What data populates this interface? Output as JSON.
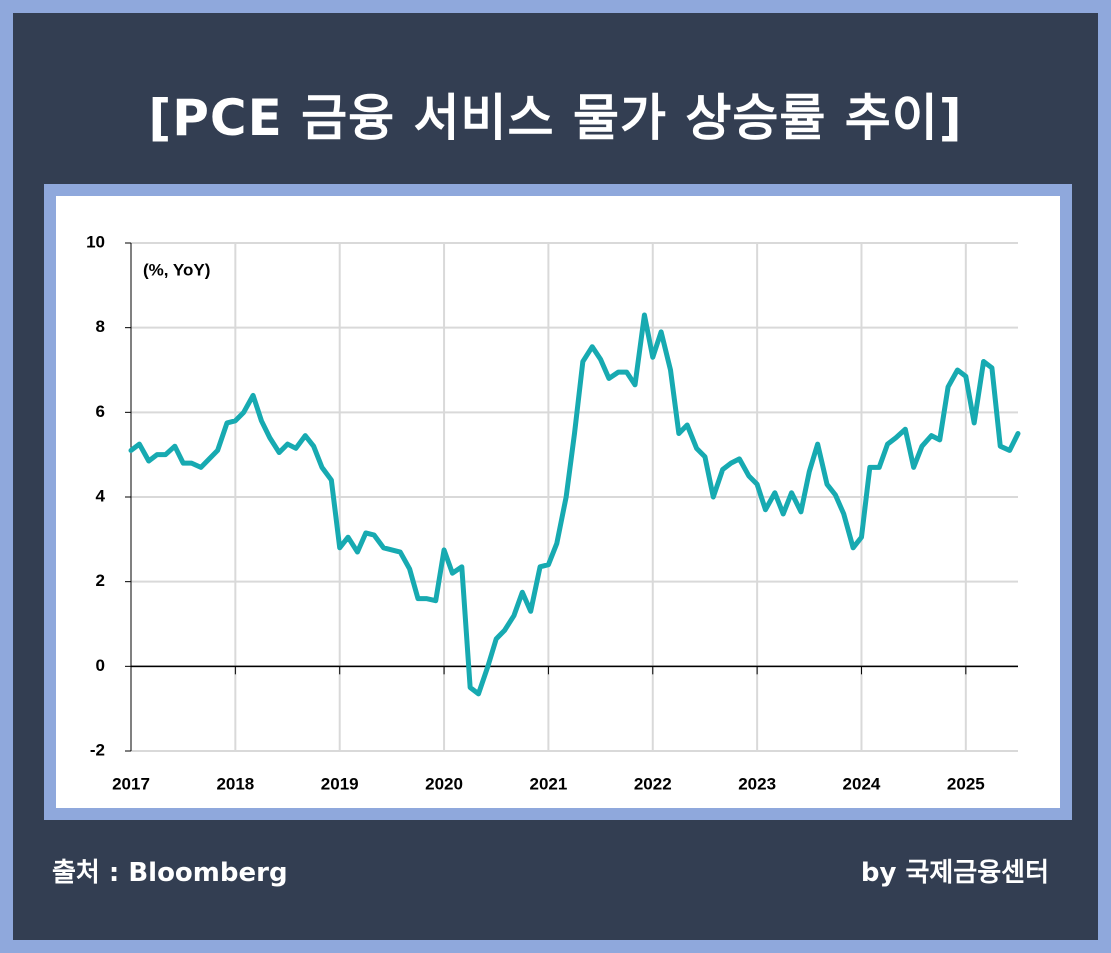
{
  "chart_data": {
    "type": "line",
    "title": "[PCE 금융 서비스 물가 상승률 추이]",
    "annotation": "(%, YoY)",
    "x": [
      2017,
      2017.08,
      2017.17,
      2017.25,
      2017.33,
      2017.42,
      2017.5,
      2017.58,
      2017.67,
      2017.75,
      2017.83,
      2017.92,
      2018,
      2018.08,
      2018.17,
      2018.25,
      2018.33,
      2018.42,
      2018.5,
      2018.58,
      2018.67,
      2018.75,
      2018.83,
      2018.92,
      2019,
      2019.08,
      2019.17,
      2019.25,
      2019.33,
      2019.42,
      2019.5,
      2019.58,
      2019.67,
      2019.75,
      2019.83,
      2019.92,
      2020,
      2020.08,
      2020.17,
      2020.25,
      2020.33,
      2020.42,
      2020.5,
      2020.58,
      2020.67,
      2020.75,
      2020.83,
      2020.92,
      2021,
      2021.08,
      2021.17,
      2021.25,
      2021.33,
      2021.42,
      2021.5,
      2021.58,
      2021.67,
      2021.75,
      2021.83,
      2021.92,
      2022,
      2022.08,
      2022.17,
      2022.25,
      2022.33,
      2022.42,
      2022.5,
      2022.58,
      2022.67,
      2022.75,
      2022.83,
      2022.92,
      2023,
      2023.08,
      2023.17,
      2023.25,
      2023.33,
      2023.42,
      2023.5,
      2023.58,
      2023.67,
      2023.75,
      2023.83,
      2023.92,
      2024,
      2024.08,
      2024.17,
      2024.25,
      2024.33,
      2024.42,
      2024.5,
      2024.58,
      2024.67,
      2024.75,
      2024.83,
      2024.92,
      2025,
      2025.08,
      2025.17,
      2025.25,
      2025.33,
      2025.42,
      2025.5
    ],
    "values": [
      5.1,
      5.25,
      4.85,
      5.0,
      5.0,
      5.2,
      4.8,
      4.8,
      4.7,
      4.9,
      5.1,
      5.75,
      5.8,
      6.0,
      6.4,
      5.8,
      5.4,
      5.05,
      5.25,
      5.15,
      5.45,
      5.2,
      4.7,
      4.4,
      2.8,
      3.05,
      2.7,
      3.15,
      3.1,
      2.8,
      2.75,
      2.7,
      2.3,
      1.6,
      1.6,
      1.55,
      2.75,
      2.2,
      2.35,
      -0.5,
      -0.65,
      0.0,
      0.65,
      0.85,
      1.2,
      1.75,
      1.3,
      2.35,
      2.4,
      2.9,
      4.0,
      5.5,
      7.2,
      7.55,
      7.25,
      6.8,
      6.95,
      6.95,
      6.65,
      8.3,
      7.3,
      7.9,
      7.0,
      5.5,
      5.7,
      5.15,
      4.95,
      4.0,
      4.65,
      4.8,
      4.9,
      4.5,
      4.3,
      3.7,
      4.1,
      3.6,
      4.1,
      3.65,
      4.6,
      5.25,
      4.3,
      4.05,
      3.6,
      2.8,
      3.05,
      4.7,
      4.7,
      5.25,
      5.4,
      5.6,
      4.7,
      5.2,
      5.45,
      5.35,
      6.6,
      7.0,
      6.85,
      5.75,
      7.2,
      7.05,
      5.2,
      5.1,
      5.5
    ],
    "color": "#17aab1",
    "xlim": [
      2017,
      2025.5
    ],
    "xticks": [
      2017,
      2018,
      2019,
      2020,
      2021,
      2022,
      2023,
      2024,
      2025
    ],
    "ylim": [
      -2,
      10
    ],
    "yticks": [
      -2,
      0,
      2,
      4,
      6,
      8,
      10
    ],
    "grid": true
  },
  "source": "출처 : Bloomberg",
  "credit": "by 국제금융센터"
}
